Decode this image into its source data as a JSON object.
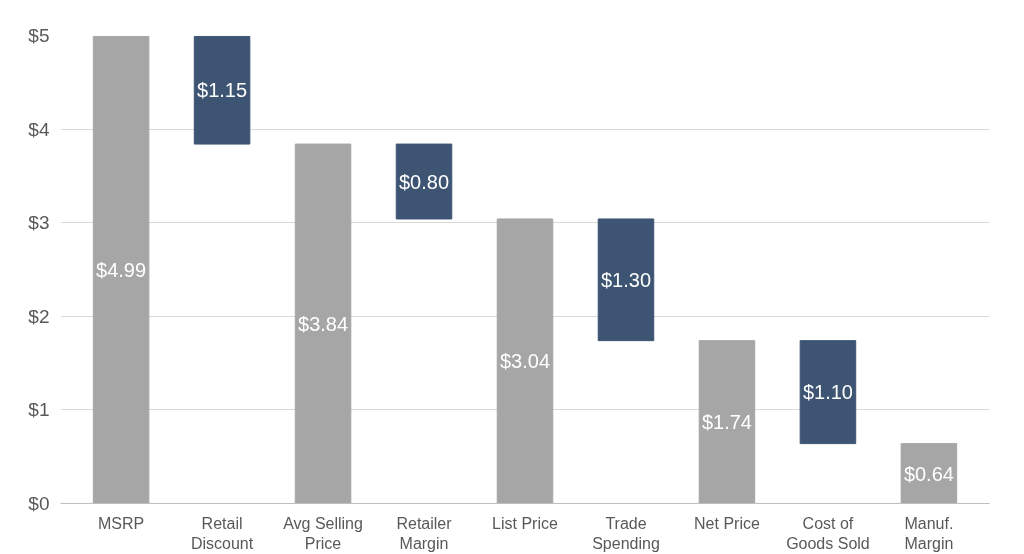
{
  "chart_data": {
    "type": "bar",
    "categories": [
      "MSRP",
      "Retail Discount",
      "Avg Selling Price",
      "Retailer Margin",
      "List Price",
      "Trade Spending",
      "Net Price",
      "Cost of Goods Sold",
      "Manuf. Margin"
    ],
    "values": [
      4.99,
      1.15,
      3.84,
      0.8,
      3.04,
      1.3,
      1.74,
      1.1,
      0.64
    ],
    "base": [
      0,
      3.84,
      0,
      3.04,
      0,
      1.74,
      0,
      0.64,
      0
    ],
    "colors": [
      "#a6a6a6",
      "#3d5573",
      "#a6a6a6",
      "#3d5573",
      "#a6a6a6",
      "#3d5573",
      "#a6a6a6",
      "#3d5573",
      "#a6a6a6"
    ],
    "value_labels": [
      "$4.99",
      "$1.15",
      "$3.84",
      "$0.80",
      "$3.04",
      "$1.30",
      "$1.74",
      "$1.10",
      "$0.64"
    ],
    "ylim": [
      0,
      5
    ],
    "yticks": [
      {
        "value": 0,
        "label": "$0"
      },
      {
        "value": 1,
        "label": "$1"
      },
      {
        "value": 2,
        "label": "$2"
      },
      {
        "value": 3,
        "label": "$3"
      },
      {
        "value": 4,
        "label": "$4"
      },
      {
        "value": 5,
        "label": "$5"
      }
    ],
    "grid": "y"
  }
}
